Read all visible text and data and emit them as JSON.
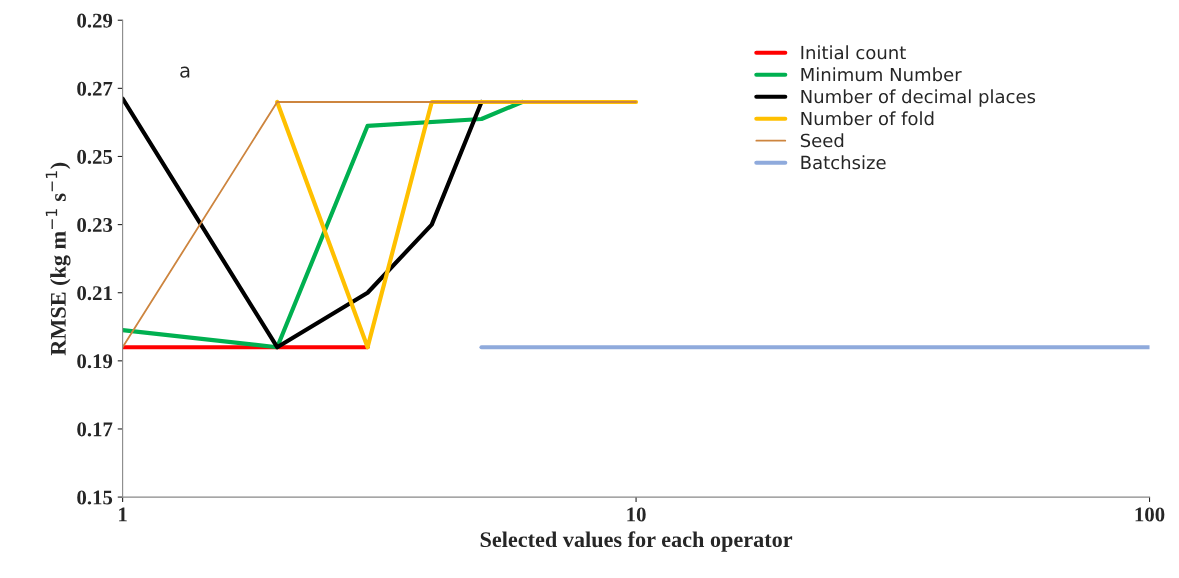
{
  "chart_data": {
    "type": "line",
    "xlabel": "Selected values for each operator",
    "ylabel": "RMSE (kg m$^{−1}$ s$^{−1}$)",
    "log": "x",
    "xlim": [
      1,
      100
    ],
    "xticks": [
      1,
      10,
      100
    ],
    "ylim": [
      0.15,
      0.29
    ],
    "yticks": [
      0.15,
      0.17,
      0.19,
      0.21,
      0.23,
      0.25,
      0.27,
      0.29
    ],
    "grid": false,
    "legend": "top right",
    "marker": "none",
    "line_style": "solid",
    "annotations": [
      "a"
    ],
    "series": [
      {
        "name": "Initial count",
        "color": "#ff0000",
        "x": [
          1,
          2,
          3
        ],
        "values": [
          0.194,
          0.194,
          0.194
        ]
      },
      {
        "name": "Minimum Number",
        "color": "#00b050",
        "x": [
          1,
          2,
          3,
          5,
          6
        ],
        "values": [
          0.199,
          0.194,
          0.259,
          0.261,
          0.266
        ]
      },
      {
        "name": "Number of decimal places",
        "color": "#000000",
        "x": [
          1,
          2,
          3,
          4,
          5
        ],
        "values": [
          0.267,
          0.194,
          0.21,
          0.23,
          0.266
        ]
      },
      {
        "name": "Number of fold",
        "color": "#ffc000",
        "x": [
          2,
          3,
          4,
          10
        ],
        "values": [
          0.266,
          0.194,
          0.266,
          0.266
        ]
      },
      {
        "name": "Seed",
        "color": "#cd853f",
        "x": [
          1,
          2,
          10
        ],
        "values": [
          0.194,
          0.266,
          0.266
        ]
      },
      {
        "name": "Batchsize",
        "color": "#8faadc",
        "x": [
          5,
          100
        ],
        "values": [
          0.194,
          0.194
        ]
      }
    ]
  }
}
